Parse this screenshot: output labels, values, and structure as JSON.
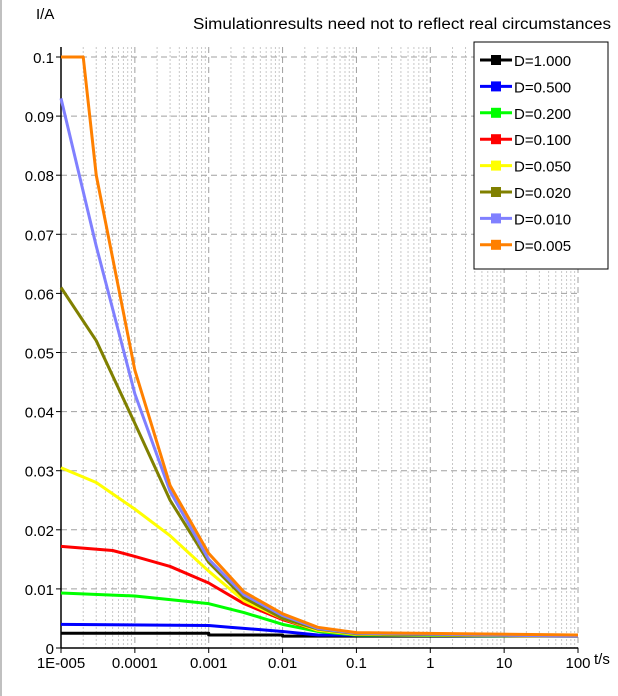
{
  "chart_data": {
    "type": "line",
    "title": "Simulationresults need not to reflect real circumstances",
    "ylabel": "I/A",
    "xlabel": "t/s",
    "x_scale": "log",
    "xlim": [
      1e-05,
      100
    ],
    "ylim": [
      0,
      0.1
    ],
    "x_ticks": [
      "1E-005",
      "0.0001",
      "0.001",
      "0.01",
      "0.1",
      "1",
      "10",
      "100"
    ],
    "y_ticks": [
      "0",
      "0.01",
      "0.02",
      "0.03",
      "0.04",
      "0.05",
      "0.06",
      "0.07",
      "0.08",
      "0.09",
      "0.1"
    ],
    "grid": true,
    "legend_position": "top-right",
    "series": [
      {
        "name": "D=1.000",
        "color": "#000000",
        "x": [
          1e-05,
          0.001,
          0.001,
          0.01,
          0.01,
          100
        ],
        "y": [
          0.0025,
          0.0025,
          0.0022,
          0.0022,
          0.002,
          0.002
        ]
      },
      {
        "name": "D=0.500",
        "color": "#0000ff",
        "x": [
          1e-05,
          0.001,
          0.002,
          0.01,
          0.03,
          100
        ],
        "y": [
          0.004,
          0.0038,
          0.0035,
          0.0028,
          0.0022,
          0.002
        ]
      },
      {
        "name": "D=0.200",
        "color": "#00ff00",
        "x": [
          1e-05,
          0.0001,
          0.001,
          0.003,
          0.01,
          0.03,
          0.1,
          100
        ],
        "y": [
          0.0093,
          0.0088,
          0.0075,
          0.006,
          0.004,
          0.0028,
          0.0022,
          0.002
        ]
      },
      {
        "name": "D=0.100",
        "color": "#ff0000",
        "x": [
          1e-05,
          5e-05,
          0.0001,
          0.0003,
          0.001,
          0.003,
          0.01,
          0.03,
          0.1,
          100
        ],
        "y": [
          0.0172,
          0.0165,
          0.0155,
          0.0138,
          0.011,
          0.0075,
          0.0048,
          0.003,
          0.0023,
          0.002
        ]
      },
      {
        "name": "D=0.050",
        "color": "#ffff00",
        "x": [
          1e-05,
          3e-05,
          0.0001,
          0.0003,
          0.001,
          0.003,
          0.01,
          0.03,
          0.1,
          100
        ],
        "y": [
          0.0305,
          0.028,
          0.0235,
          0.019,
          0.013,
          0.008,
          0.005,
          0.003,
          0.0023,
          0.002
        ]
      },
      {
        "name": "D=0.020",
        "color": "#808000",
        "x": [
          1e-05,
          3e-05,
          0.0001,
          0.0003,
          0.001,
          0.003,
          0.01,
          0.03,
          0.1,
          100
        ],
        "y": [
          0.061,
          0.052,
          0.038,
          0.025,
          0.0145,
          0.0085,
          0.005,
          0.0032,
          0.0024,
          0.002
        ]
      },
      {
        "name": "D=0.010",
        "color": "#8080ff",
        "x": [
          1e-05,
          3e-05,
          0.0001,
          0.0003,
          0.001,
          0.003,
          0.01,
          0.03,
          0.1,
          100
        ],
        "y": [
          0.093,
          0.068,
          0.043,
          0.0265,
          0.015,
          0.009,
          0.0055,
          0.0033,
          0.0025,
          0.002
        ]
      },
      {
        "name": "D=0.005",
        "color": "#ff8000",
        "x": [
          1e-05,
          2e-05,
          3e-05,
          0.0001,
          0.0003,
          0.001,
          0.003,
          0.01,
          0.03,
          0.1,
          100
        ],
        "y": [
          0.1,
          0.1,
          0.08,
          0.047,
          0.0275,
          0.016,
          0.0095,
          0.0058,
          0.0035,
          0.0026,
          0.0022
        ]
      }
    ]
  }
}
